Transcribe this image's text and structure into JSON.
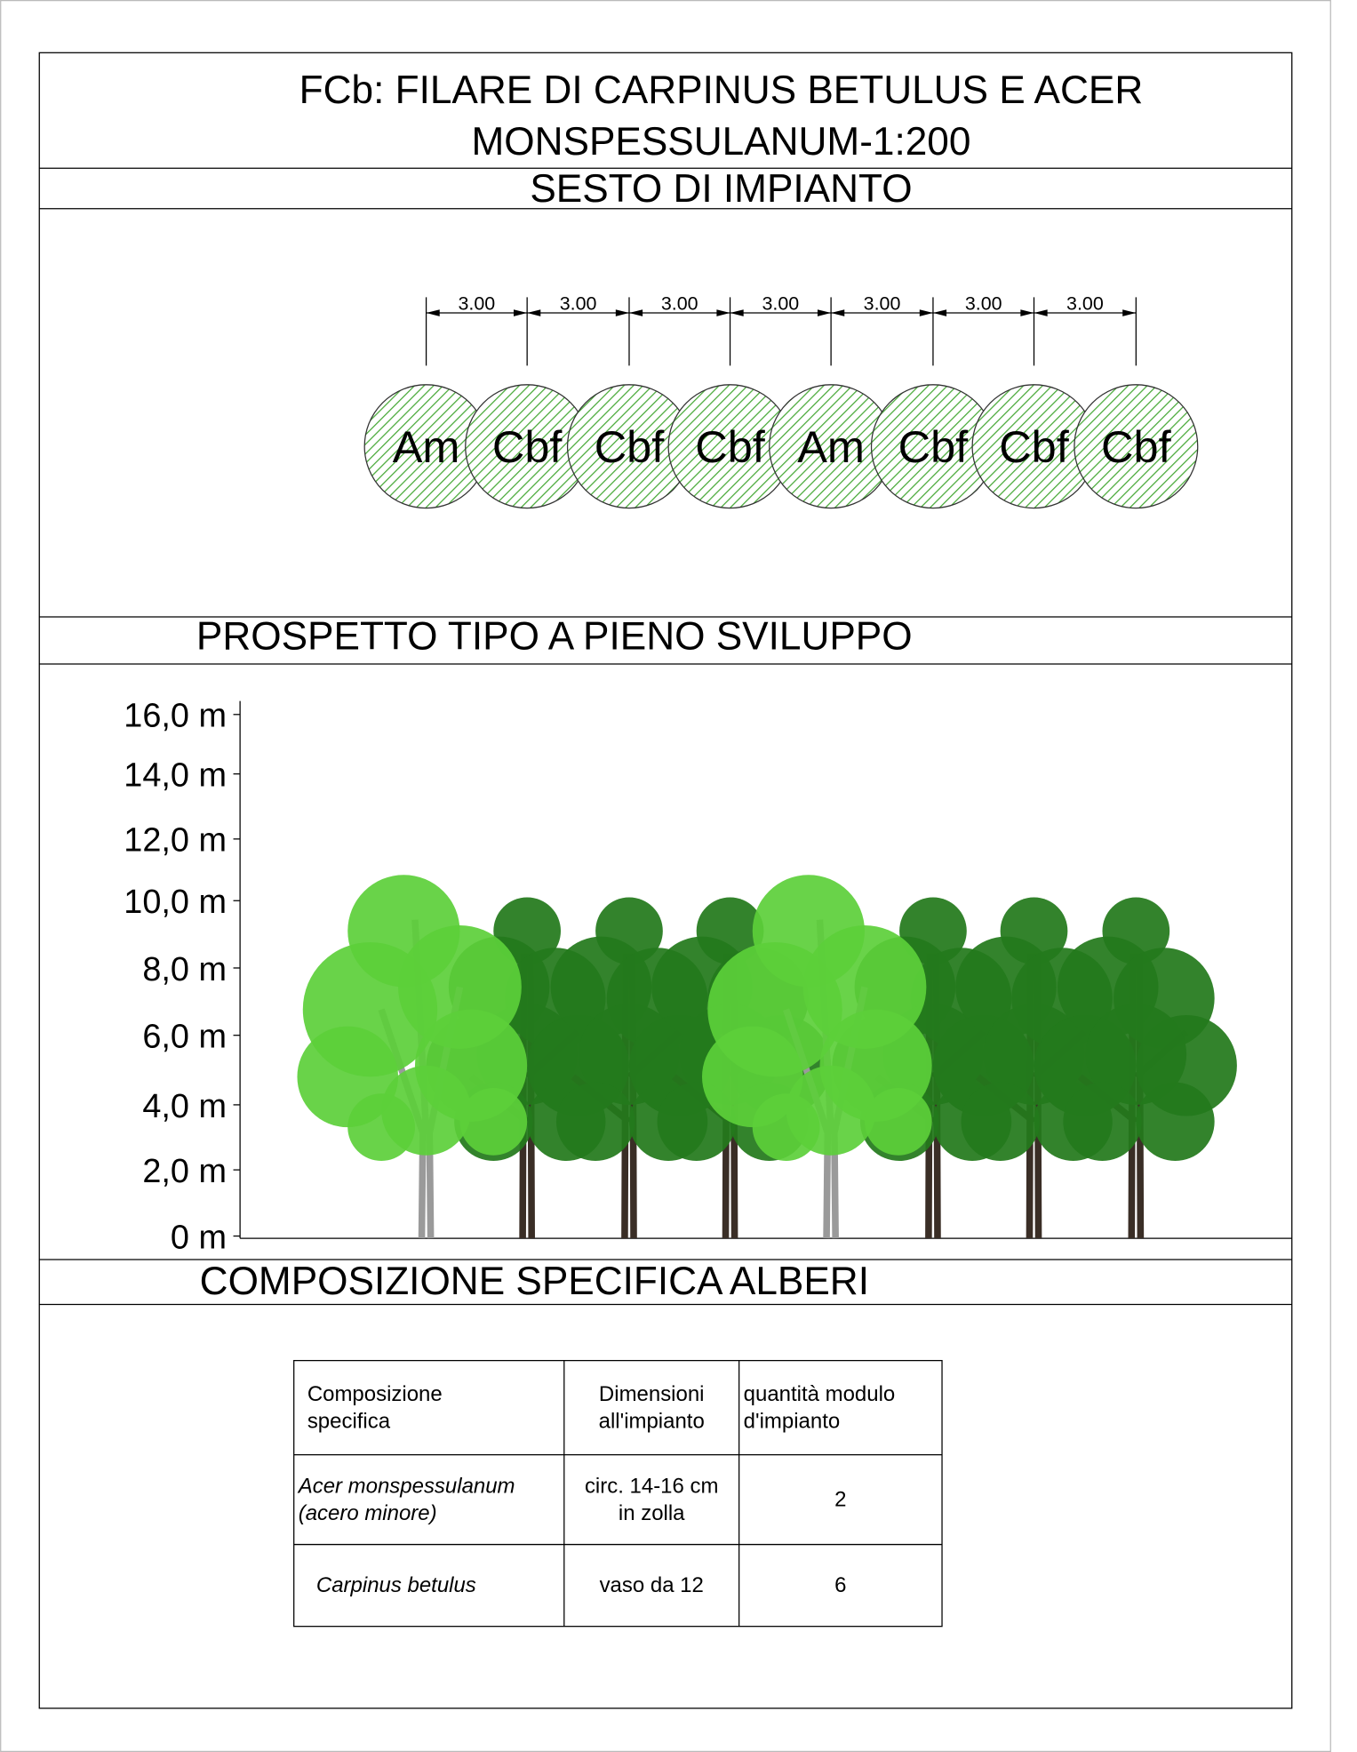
{
  "header": {
    "title_lines": [
      "FCb: FILARE DI CARPINUS BETULUS E ACER",
      "MONSPESSULANUM-1:200"
    ]
  },
  "planting": {
    "title": "SESTO DI IMPIANTO",
    "spacings": [
      "3.00",
      "3.00",
      "3.00",
      "3.00",
      "3.00",
      "3.00",
      "3.00"
    ],
    "trees": [
      "Am",
      "Cbf",
      "Cbf",
      "Cbf",
      "Am",
      "Cbf",
      "Cbf",
      "Cbf"
    ]
  },
  "elevation": {
    "title": "PROSPETTO TIPO A PIENO SVILUPPO",
    "height_labels": [
      "16,0 m",
      "14,0 m",
      "12,0 m",
      "10,0 m",
      "8,0 m",
      "6,0 m",
      "4,0 m",
      "2,0 m",
      "0 m"
    ]
  },
  "composition": {
    "title": "COMPOSIZIONE SPECIFICA ALBERI",
    "table": {
      "header": [
        [
          "Composizione",
          "specifica"
        ],
        [
          "Dimensioni",
          "all'impianto"
        ],
        [
          "quantità modulo",
          "d'impianto"
        ]
      ],
      "rows": [
        [
          [
            "Acer monspessulanum",
            "(acero minore)"
          ],
          [
            "circ. 14-16 cm",
            "in zolla"
          ],
          [
            "2"
          ]
        ],
        [
          [
            "Carpinus betulus"
          ],
          [
            "vaso da 12"
          ],
          [
            "6"
          ]
        ]
      ]
    }
  }
}
